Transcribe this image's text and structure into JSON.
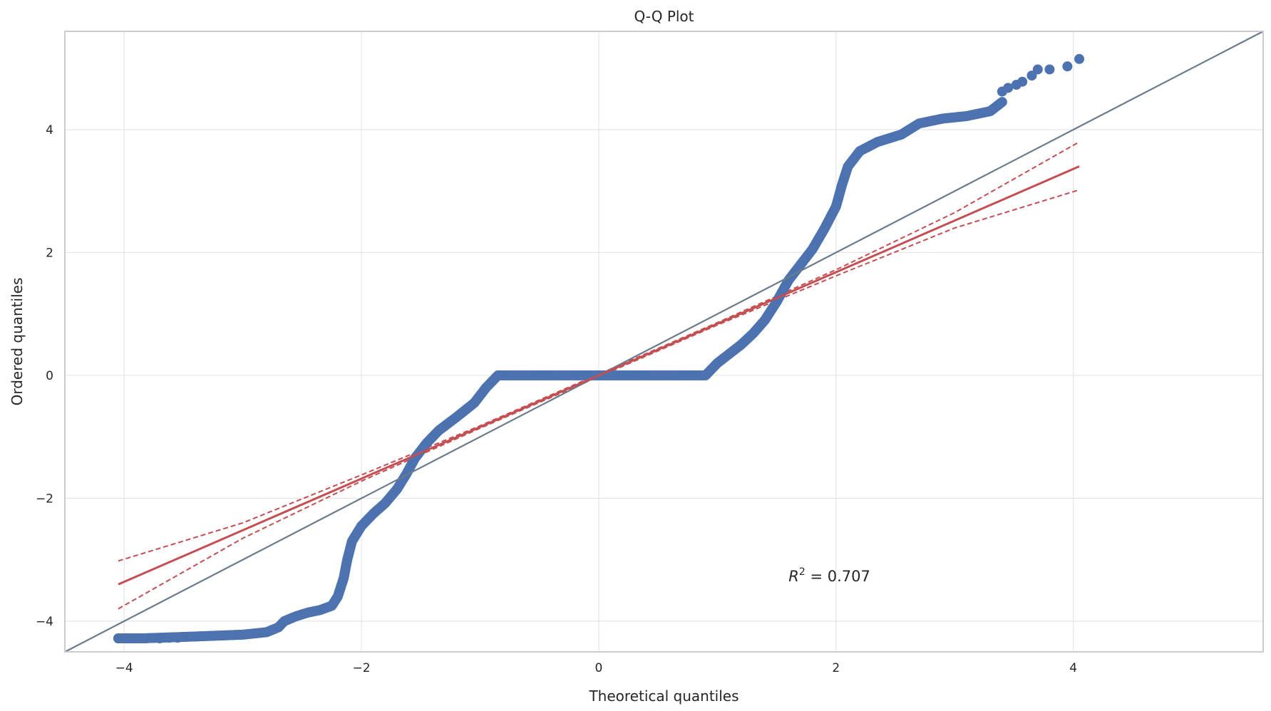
{
  "chart_data": {
    "type": "scatter",
    "title": "Q-Q Plot",
    "xlabel": "Theoretical quantiles",
    "ylabel": "Ordered quantiles",
    "xlim": [
      -4.5,
      5.6
    ],
    "ylim": [
      -4.5,
      5.6
    ],
    "xticks": [
      -4,
      -2,
      0,
      2,
      4
    ],
    "yticks": [
      -4,
      -2,
      0,
      2,
      4
    ],
    "xtick_labels": [
      "−4",
      "−2",
      "0",
      "2",
      "4"
    ],
    "ytick_labels": [
      "−4",
      "−2",
      "0",
      "2",
      "4"
    ],
    "grid": true,
    "annotation": {
      "italic": "R",
      "sup": "2",
      "rest": " = 0.707",
      "x": 1.6,
      "y": -3.35
    },
    "colors": {
      "points": "#4c72b0",
      "fit": "#c44e52",
      "reference": "#6b7b8c",
      "grid": "#e5e5e5",
      "frame": "#cccccc"
    },
    "curve": [
      [
        -4.05,
        -4.28
      ],
      [
        -3.85,
        -4.28
      ],
      [
        -3.4,
        -4.25
      ],
      [
        -3.0,
        -4.22
      ],
      [
        -2.8,
        -4.18
      ],
      [
        -2.7,
        -4.1
      ],
      [
        -2.65,
        -4.0
      ],
      [
        -2.55,
        -3.92
      ],
      [
        -2.45,
        -3.86
      ],
      [
        -2.35,
        -3.82
      ],
      [
        -2.25,
        -3.75
      ],
      [
        -2.2,
        -3.6
      ],
      [
        -2.15,
        -3.3
      ],
      [
        -2.12,
        -3.0
      ],
      [
        -2.08,
        -2.7
      ],
      [
        -2.0,
        -2.45
      ],
      [
        -1.9,
        -2.25
      ],
      [
        -1.8,
        -2.08
      ],
      [
        -1.7,
        -1.85
      ],
      [
        -1.62,
        -1.6
      ],
      [
        -1.55,
        -1.35
      ],
      [
        -1.45,
        -1.1
      ],
      [
        -1.35,
        -0.9
      ],
      [
        -1.2,
        -0.68
      ],
      [
        -1.05,
        -0.45
      ],
      [
        -0.95,
        -0.2
      ],
      [
        -0.85,
        0.0
      ],
      [
        0.9,
        0.0
      ],
      [
        1.0,
        0.2
      ],
      [
        1.1,
        0.35
      ],
      [
        1.2,
        0.5
      ],
      [
        1.3,
        0.68
      ],
      [
        1.4,
        0.9
      ],
      [
        1.5,
        1.2
      ],
      [
        1.6,
        1.55
      ],
      [
        1.7,
        1.8
      ],
      [
        1.8,
        2.05
      ],
      [
        1.9,
        2.38
      ],
      [
        2.0,
        2.75
      ],
      [
        2.05,
        3.1
      ],
      [
        2.1,
        3.4
      ],
      [
        2.2,
        3.65
      ],
      [
        2.35,
        3.8
      ],
      [
        2.55,
        3.92
      ],
      [
        2.7,
        4.1
      ],
      [
        2.9,
        4.18
      ],
      [
        3.1,
        4.22
      ],
      [
        3.3,
        4.3
      ],
      [
        3.4,
        4.45
      ]
    ],
    "tail_points": [
      [
        3.4,
        4.62
      ],
      [
        3.45,
        4.68
      ],
      [
        3.52,
        4.73
      ],
      [
        3.57,
        4.78
      ],
      [
        3.65,
        4.88
      ],
      [
        3.7,
        4.98
      ],
      [
        3.8,
        4.98
      ],
      [
        3.95,
        5.03
      ],
      [
        4.05,
        5.15
      ]
    ],
    "head_points": [
      [
        -4.05,
        -4.28
      ],
      [
        -3.82,
        -4.28
      ],
      [
        -3.7,
        -4.28
      ],
      [
        -3.62,
        -4.27
      ],
      [
        -3.55,
        -4.27
      ]
    ],
    "reference_line": {
      "slope": 1,
      "intercept": 0
    },
    "fit_line": {
      "slope": 0.84,
      "intercept": 0.0,
      "x_range": [
        -4.05,
        4.05
      ]
    },
    "confidence_band": {
      "upper": [
        [
          -4.05,
          -3.02
        ],
        [
          -3.0,
          -2.4
        ],
        [
          -2.0,
          -1.62
        ],
        [
          -1.0,
          -0.82
        ],
        [
          0.0,
          0.02
        ],
        [
          1.0,
          0.86
        ],
        [
          2.0,
          1.72
        ],
        [
          3.0,
          2.65
        ],
        [
          4.05,
          3.8
        ]
      ],
      "lower": [
        [
          -4.05,
          -3.8
        ],
        [
          -3.0,
          -2.65
        ],
        [
          -2.0,
          -1.72
        ],
        [
          -1.0,
          -0.86
        ],
        [
          0.0,
          -0.02
        ],
        [
          1.0,
          0.82
        ],
        [
          2.0,
          1.62
        ],
        [
          3.0,
          2.4
        ],
        [
          4.05,
          3.02
        ]
      ]
    }
  }
}
